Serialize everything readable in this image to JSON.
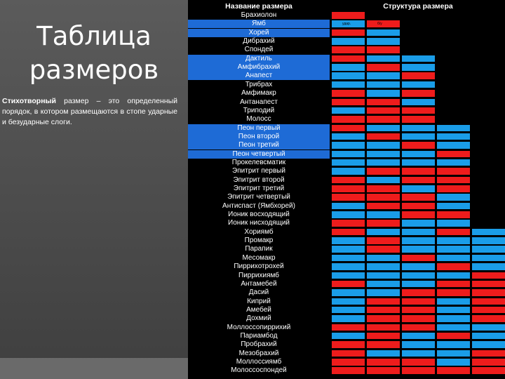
{
  "slide": {
    "title_line1": "Таблица",
    "title_line2": "размеров",
    "definition_bold": "Стихотворный",
    "definition_part2": "размер – это",
    "definition_rest": "определенный порядок, в котором размещаются в стопе ударные и безударные слоги."
  },
  "table": {
    "name_header": "Название размера",
    "structure_header": "Структура размера",
    "micro_labels": [
      "удар.",
      "б/у"
    ],
    "colors": {
      "r": "#ee1c1c",
      "b": "#1a9de8",
      "highlight": "#1e6bd6"
    },
    "rows": [
      {
        "name": "Брахиолон",
        "hl": false,
        "cells": [
          "r"
        ]
      },
      {
        "name": "Ямб",
        "hl": true,
        "cells": [
          "b",
          "r"
        ]
      },
      {
        "name": "Хорей",
        "hl": true,
        "cells": [
          "r",
          "b"
        ]
      },
      {
        "name": "Дибрахий",
        "hl": false,
        "cells": [
          "b",
          "b"
        ]
      },
      {
        "name": "Спондей",
        "hl": false,
        "cells": [
          "r",
          "r"
        ]
      },
      {
        "name": "Дактиль",
        "hl": true,
        "cells": [
          "r",
          "b",
          "b"
        ]
      },
      {
        "name": "Амфибрахий",
        "hl": true,
        "cells": [
          "b",
          "r",
          "b"
        ]
      },
      {
        "name": "Анапест",
        "hl": true,
        "cells": [
          "b",
          "b",
          "r"
        ]
      },
      {
        "name": "Трибрах",
        "hl": false,
        "cells": [
          "b",
          "b",
          "b"
        ]
      },
      {
        "name": "Амфимакр",
        "hl": false,
        "cells": [
          "r",
          "b",
          "r"
        ]
      },
      {
        "name": "Антанапест",
        "hl": false,
        "cells": [
          "r",
          "r",
          "b"
        ]
      },
      {
        "name": "Триподий",
        "hl": false,
        "cells": [
          "b",
          "r",
          "r"
        ]
      },
      {
        "name": "Молосс",
        "hl": false,
        "cells": [
          "r",
          "r",
          "r"
        ]
      },
      {
        "name": "Пеон первый",
        "hl": true,
        "cells": [
          "r",
          "b",
          "b",
          "b"
        ]
      },
      {
        "name": "Пеон второй",
        "hl": true,
        "cells": [
          "b",
          "r",
          "b",
          "b"
        ]
      },
      {
        "name": "Пеон третий",
        "hl": true,
        "cells": [
          "b",
          "b",
          "r",
          "b"
        ]
      },
      {
        "name": "Пеон четвертый",
        "hl": true,
        "cells": [
          "b",
          "b",
          "b",
          "r"
        ]
      },
      {
        "name": "Прокелевсматик",
        "hl": false,
        "cells": [
          "b",
          "b",
          "b",
          "b"
        ]
      },
      {
        "name": "Эпитрит первый",
        "hl": false,
        "cells": [
          "b",
          "r",
          "r",
          "r"
        ]
      },
      {
        "name": "Эпитрит второй",
        "hl": false,
        "cells": [
          "r",
          "b",
          "r",
          "r"
        ]
      },
      {
        "name": "Эпитрит третий",
        "hl": false,
        "cells": [
          "r",
          "r",
          "b",
          "r"
        ]
      },
      {
        "name": "Эпитрит четвертый",
        "hl": false,
        "cells": [
          "r",
          "r",
          "r",
          "b"
        ]
      },
      {
        "name": "Антиспаст (Ямбхорей)",
        "hl": false,
        "cells": [
          "b",
          "r",
          "r",
          "b"
        ]
      },
      {
        "name": "Ионик восходящий",
        "hl": false,
        "cells": [
          "b",
          "b",
          "r",
          "r"
        ]
      },
      {
        "name": "Ионик нисходящий",
        "hl": false,
        "cells": [
          "r",
          "r",
          "b",
          "b"
        ]
      },
      {
        "name": "Хориямб",
        "hl": false,
        "cells": [
          "r",
          "b",
          "b",
          "r",
          "b"
        ]
      },
      {
        "name": "Промакр",
        "hl": false,
        "cells": [
          "b",
          "r",
          "b",
          "b",
          "b"
        ]
      },
      {
        "name": "Парапик",
        "hl": false,
        "cells": [
          "b",
          "r",
          "b",
          "b",
          "b"
        ]
      },
      {
        "name": "Месомакр",
        "hl": false,
        "cells": [
          "b",
          "b",
          "r",
          "b",
          "b"
        ]
      },
      {
        "name": "Пиррихотрохей",
        "hl": false,
        "cells": [
          "b",
          "b",
          "b",
          "r",
          "b"
        ]
      },
      {
        "name": "Пиррихиямб",
        "hl": false,
        "cells": [
          "b",
          "b",
          "b",
          "b",
          "r"
        ]
      },
      {
        "name": "Антамебей",
        "hl": false,
        "cells": [
          "r",
          "b",
          "b",
          "r",
          "r"
        ]
      },
      {
        "name": "Дасий",
        "hl": false,
        "cells": [
          "b",
          "b",
          "r",
          "r",
          "r"
        ]
      },
      {
        "name": "Киприй",
        "hl": false,
        "cells": [
          "b",
          "r",
          "r",
          "b",
          "r"
        ]
      },
      {
        "name": "Амебей",
        "hl": false,
        "cells": [
          "b",
          "r",
          "r",
          "b",
          "r"
        ]
      },
      {
        "name": "Дохмий",
        "hl": false,
        "cells": [
          "b",
          "r",
          "r",
          "b",
          "r"
        ]
      },
      {
        "name": "Моллоссопиррихий",
        "hl": false,
        "cells": [
          "r",
          "r",
          "r",
          "b",
          "b"
        ]
      },
      {
        "name": "Париамбод",
        "hl": false,
        "cells": [
          "b",
          "r",
          "b",
          "r",
          "b"
        ]
      },
      {
        "name": "Пробрахий",
        "hl": false,
        "cells": [
          "r",
          "r",
          "b",
          "b",
          "b"
        ]
      },
      {
        "name": "Мезобрахий",
        "hl": false,
        "cells": [
          "r",
          "b",
          "b",
          "b",
          "r"
        ]
      },
      {
        "name": "Моллоссиямб",
        "hl": false,
        "cells": [
          "r",
          "r",
          "r",
          "b",
          "r"
        ]
      },
      {
        "name": "Молоссоспондей",
        "hl": false,
        "cells": [
          "r",
          "r",
          "r",
          "r",
          "r"
        ]
      }
    ]
  }
}
